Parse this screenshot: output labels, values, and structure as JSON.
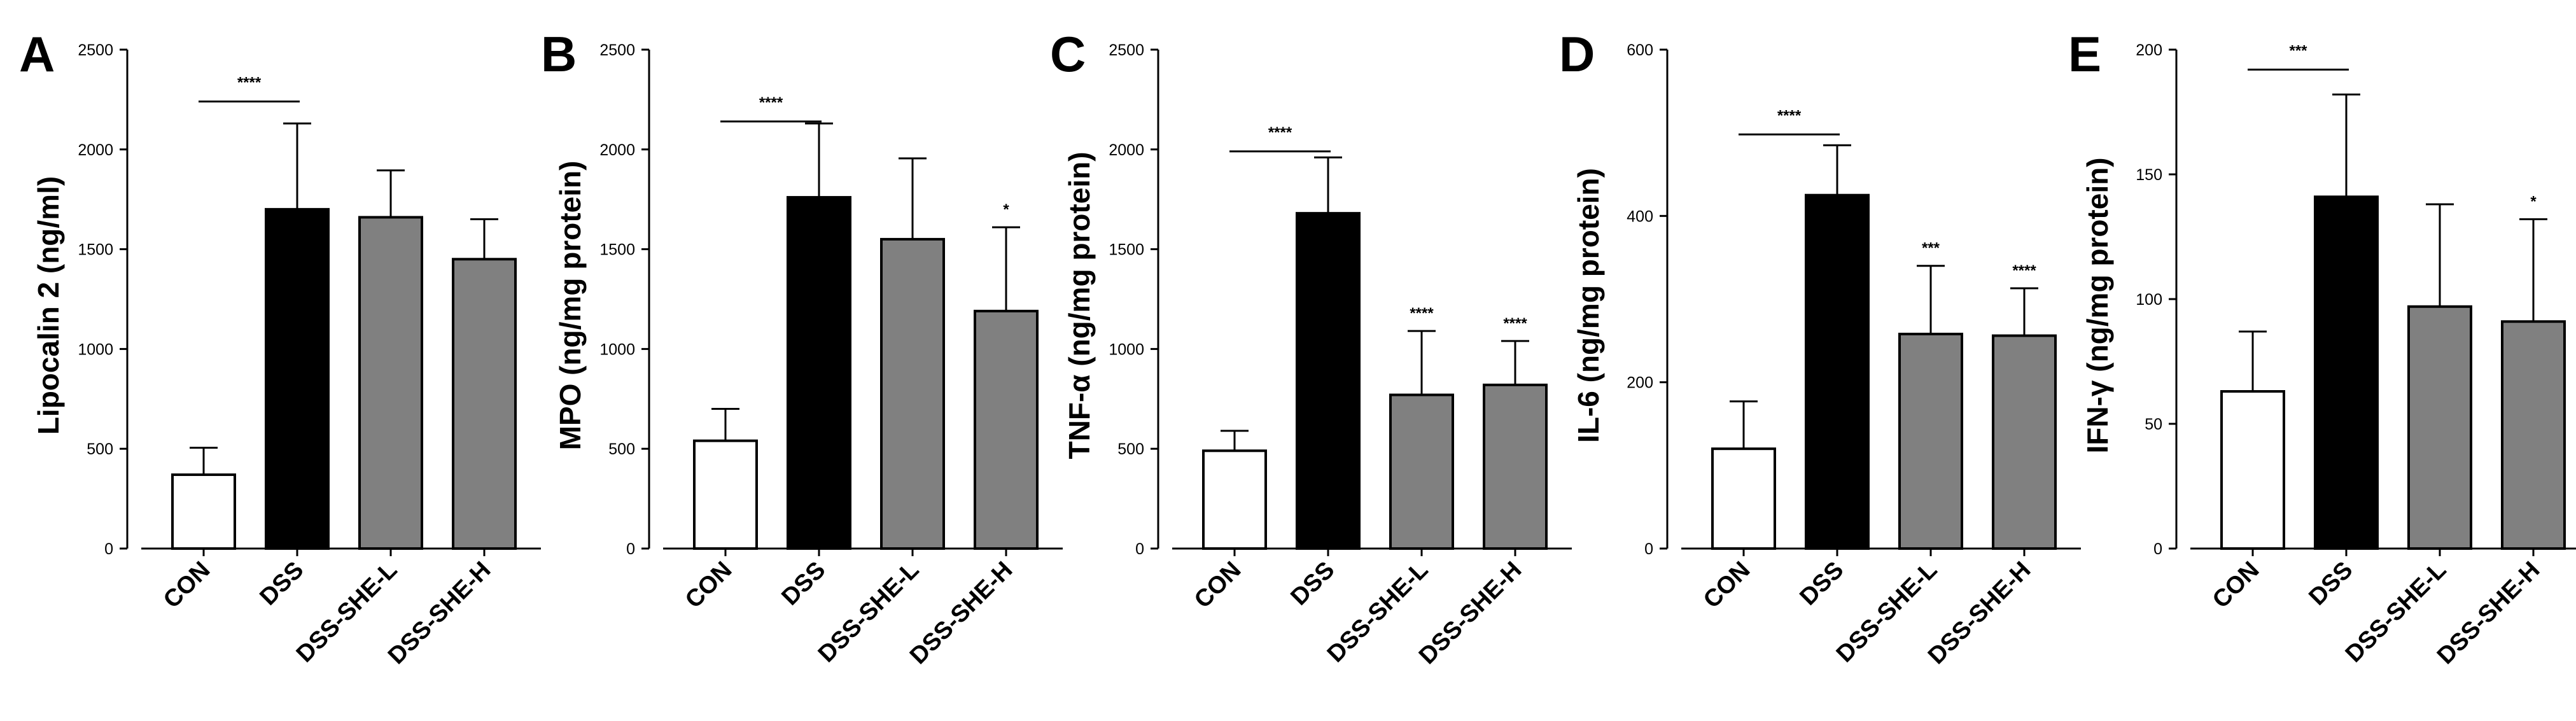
{
  "chart_data": [
    {
      "panel": "A",
      "type": "bar",
      "ylabel": "Lipocalin 2 (ng/ml)",
      "ylim": [
        0,
        2500
      ],
      "yticks": [
        "0",
        "500",
        "1000",
        "1500",
        "2000",
        "2500"
      ],
      "categories": [
        "CON",
        "DSS",
        "DSS-SHE-L",
        "DSS-SHE-H"
      ],
      "values": [
        370,
        1700,
        1660,
        1450
      ],
      "errors": [
        135,
        430,
        235,
        200
      ],
      "colors": [
        "#ffffff",
        "#000000",
        "#808080",
        "#808080"
      ],
      "bar_significance": [
        "",
        "",
        "",
        ""
      ],
      "comparison": {
        "from": 0,
        "to": 1,
        "label": "****",
        "y": 2240
      }
    },
    {
      "panel": "B",
      "type": "bar",
      "ylabel": "MPO (ng/mg protein)",
      "ylim": [
        0,
        2500
      ],
      "yticks": [
        "0",
        "500",
        "1000",
        "1500",
        "2000",
        "2500"
      ],
      "categories": [
        "CON",
        "DSS",
        "DSS-SHE-L",
        "DSS-SHE-H"
      ],
      "values": [
        540,
        1760,
        1550,
        1190
      ],
      "errors": [
        160,
        370,
        405,
        420
      ],
      "colors": [
        "#ffffff",
        "#000000",
        "#808080",
        "#808080"
      ],
      "bar_significance": [
        "",
        "",
        "",
        "*"
      ],
      "comparison": {
        "from": 0,
        "to": 1,
        "label": "****",
        "y": 2140
      }
    },
    {
      "panel": "C",
      "type": "bar",
      "ylabel": "TNF-α (ng/mg protein)",
      "ylim": [
        0,
        2500
      ],
      "yticks": [
        "0",
        "500",
        "1000",
        "1500",
        "2000",
        "2500"
      ],
      "categories": [
        "CON",
        "DSS",
        "DSS-SHE-L",
        "DSS-SHE-H"
      ],
      "values": [
        490,
        1680,
        770,
        820
      ],
      "errors": [
        100,
        280,
        320,
        220
      ],
      "colors": [
        "#ffffff",
        "#000000",
        "#808080",
        "#808080"
      ],
      "bar_significance": [
        "",
        "",
        "****",
        "****"
      ],
      "comparison": {
        "from": 0,
        "to": 1,
        "label": "****",
        "y": 1990
      }
    },
    {
      "panel": "D",
      "type": "bar",
      "ylabel": "IL-6 (ng/mg protein)",
      "ylim": [
        0,
        600
      ],
      "yticks": [
        "0",
        "200",
        "400",
        "600"
      ],
      "categories": [
        "CON",
        "DSS",
        "DSS-SHE-L",
        "DSS-SHE-H"
      ],
      "values": [
        120,
        425,
        258,
        256
      ],
      "errors": [
        57,
        60,
        82,
        57
      ],
      "colors": [
        "#ffffff",
        "#000000",
        "#808080",
        "#808080"
      ],
      "bar_significance": [
        "",
        "",
        "***",
        "****"
      ],
      "comparison": {
        "from": 0,
        "to": 1,
        "label": "****",
        "y": 498
      }
    },
    {
      "panel": "E",
      "type": "bar",
      "ylabel": "IFN-γ (ng/mg protein)",
      "ylim": [
        0,
        200
      ],
      "yticks": [
        "0",
        "50",
        "100",
        "150",
        "200"
      ],
      "categories": [
        "CON",
        "DSS",
        "DSS-SHE-L",
        "DSS-SHE-H"
      ],
      "values": [
        63,
        141,
        97,
        91
      ],
      "errors": [
        24,
        41,
        41,
        41
      ],
      "colors": [
        "#ffffff",
        "#000000",
        "#808080",
        "#808080"
      ],
      "bar_significance": [
        "",
        "",
        "",
        "*"
      ],
      "comparison": {
        "from": 0,
        "to": 1,
        "label": "***",
        "y": 192
      }
    }
  ]
}
